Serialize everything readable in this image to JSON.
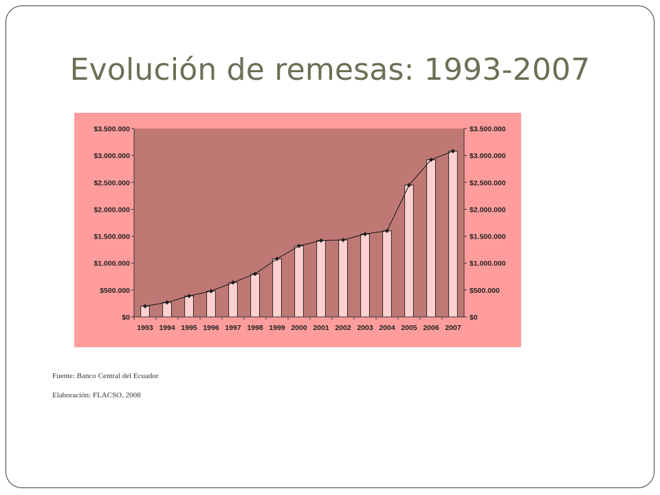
{
  "slide": {
    "title": "Evolución de remesas: 1993-2007",
    "source": "Fuente: Banco Central del Ecuador",
    "credit": "Elaboración: FLACSO, 2008"
  },
  "colors": {
    "outer_background": "#ff9d9d",
    "plot_background": "#c07874",
    "bar_fill": "#ffd0d0",
    "line": "#1f1f1f",
    "title": "#6b6f55"
  },
  "chart_data": {
    "type": "bar",
    "title": "",
    "xlabel": "",
    "ylabel": "",
    "categories": [
      "1993",
      "1994",
      "1995",
      "1996",
      "1997",
      "1998",
      "1999",
      "2000",
      "2001",
      "2002",
      "2003",
      "2004",
      "2005",
      "2006",
      "2007"
    ],
    "series": [
      {
        "type": "bar",
        "axis": "left",
        "values": [
          200000,
          270000,
          390000,
          480000,
          640000,
          800000,
          1080000,
          1320000,
          1420000,
          1430000,
          1540000,
          1600000,
          2450000,
          2920000,
          3080000
        ]
      },
      {
        "type": "line",
        "axis": "right",
        "marker": "diamond",
        "values": [
          200000,
          270000,
          390000,
          480000,
          640000,
          800000,
          1080000,
          1320000,
          1420000,
          1430000,
          1540000,
          1600000,
          2450000,
          2920000,
          3080000
        ]
      }
    ],
    "ylim": [
      0,
      3500000
    ],
    "y_ticks": [
      0,
      500000,
      1000000,
      1500000,
      2000000,
      2500000,
      3000000,
      3500000
    ],
    "y_tick_labels": [
      "$0",
      "$500.000",
      "$1.000.000",
      "$1.500.000",
      "$2.000.000",
      "$2.500.000",
      "$3.000.000",
      "$3.500.000"
    ],
    "y2lim": [
      0,
      3500000
    ],
    "y2_tick_labels": [
      "$0",
      "$500.000",
      "$1.000.000",
      "$1.500.000",
      "$2.000.000",
      "$2.500.000",
      "$3.000.000",
      "$3.500.000"
    ],
    "grid": false,
    "legend": "none"
  }
}
